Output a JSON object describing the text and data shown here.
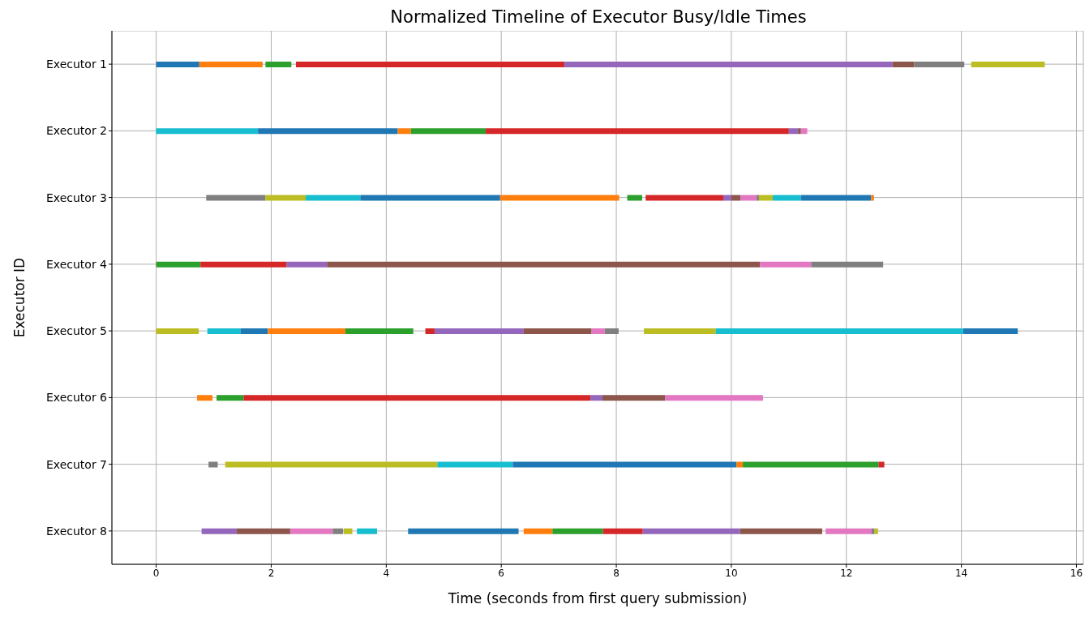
{
  "chart_data": {
    "type": "bar",
    "orientation": "horizontal",
    "title": "Normalized Timeline of Executor Busy/Idle Times",
    "xlabel": "Time (seconds from first query submission)",
    "ylabel": "Executor ID",
    "categories": [
      "Executor 1",
      "Executor 2",
      "Executor 3",
      "Executor 4",
      "Executor 5",
      "Executor 6",
      "Executor 7",
      "Executor 8"
    ],
    "xlim": [
      -0.77,
      16.12
    ],
    "xticks": [
      0,
      2,
      4,
      6,
      8,
      10,
      12,
      14,
      16
    ],
    "grid": true,
    "legend": false,
    "series": [
      {
        "base": [
          0,
          0,
          0.87,
          0,
          0,
          0.71,
          0.91,
          0.79
        ],
        "values": [
          0.75,
          1.77,
          1.03,
          0.77,
          0.74,
          0.27,
          0.16,
          0.61
        ],
        "colors": [
          "#1f77b4",
          "#17becf",
          "#7f7f7f",
          "#2ca02c",
          "#bcbd22",
          "#ff7f0e",
          "#7f7f7f",
          "#9467bd"
        ]
      },
      {
        "base": [
          0.75,
          1.77,
          1.9,
          0.77,
          0.89,
          1.05,
          1.2,
          1.4
        ],
        "values": [
          1.1,
          2.43,
          0.7,
          1.5,
          0.58,
          0.47,
          3.69,
          0.93
        ],
        "colors": [
          "#ff7f0e",
          "#1f77b4",
          "#bcbd22",
          "#d62728",
          "#17becf",
          "#2ca02c",
          "#bcbd22",
          "#8c564b"
        ]
      },
      {
        "base": [
          1.9,
          4.2,
          2.6,
          2.27,
          1.47,
          1.52,
          4.89,
          2.33
        ],
        "values": [
          0.45,
          0.23,
          0.95,
          0.7,
          0.47,
          6.03,
          1.31,
          0.74
        ],
        "colors": [
          "#2ca02c",
          "#ff7f0e",
          "#17becf",
          "#9467bd",
          "#1f77b4",
          "#d62728",
          "#17becf",
          "#e377c2"
        ]
      },
      {
        "base": [
          2.43,
          4.43,
          3.55,
          2.97,
          1.94,
          7.55,
          6.2,
          3.07
        ],
        "values": [
          4.67,
          1.3,
          2.43,
          7.53,
          1.35,
          0.21,
          3.89,
          0.18
        ],
        "colors": [
          "#d62728",
          "#2ca02c",
          "#1f77b4",
          "#8c564b",
          "#ff7f0e",
          "#9467bd",
          "#1f77b4",
          "#7f7f7f"
        ]
      },
      {
        "base": [
          7.1,
          5.73,
          5.98,
          10.5,
          3.29,
          7.76,
          10.09,
          3.26
        ],
        "values": [
          5.7,
          5.27,
          2.07,
          0.89,
          1.18,
          1.09,
          0.11,
          0.15
        ],
        "colors": [
          "#9467bd",
          "#d62728",
          "#ff7f0e",
          "#e377c2",
          "#2ca02c",
          "#8c564b",
          "#ff7f0e",
          "#bcbd22"
        ]
      },
      {
        "base": [
          12.8,
          11.0,
          8.19,
          11.39,
          4.68,
          8.85,
          10.2,
          3.49
        ],
        "values": [
          0.38,
          0.16,
          0.26,
          1.25,
          0.16,
          1.7,
          2.36,
          0.35
        ],
        "colors": [
          "#8c564b",
          "#9467bd",
          "#2ca02c",
          "#7f7f7f",
          "#d62728",
          "#e377c2",
          "#2ca02c",
          "#17becf"
        ]
      },
      {
        "base": [
          13.18,
          11.16,
          8.51,
          null,
          4.84,
          null,
          12.56,
          4.38
        ],
        "values": [
          0.87,
          0.05,
          1.35,
          null,
          1.55,
          null,
          0.1,
          1.92
        ],
        "colors": [
          "#7f7f7f",
          "#8c564b",
          "#d62728",
          null,
          "#9467bd",
          null,
          "#d62728",
          "#1f77b4"
        ]
      },
      {
        "base": [
          14.17,
          11.21,
          9.86,
          null,
          6.39,
          null,
          null,
          6.39
        ],
        "values": [
          1.28,
          0.11,
          0.14,
          null,
          1.18,
          null,
          null,
          0.5
        ],
        "colors": [
          "#bcbd22",
          "#e377c2",
          "#9467bd",
          null,
          "#8c564b",
          null,
          null,
          "#ff7f0e"
        ]
      },
      {
        "base": [
          null,
          null,
          10.0,
          null,
          7.57,
          null,
          null,
          6.89
        ],
        "values": [
          null,
          null,
          0.16,
          null,
          0.23,
          null,
          null,
          0.88
        ],
        "colors": [
          null,
          null,
          "#8c564b",
          null,
          "#e377c2",
          null,
          null,
          "#2ca02c"
        ]
      },
      {
        "base": [
          null,
          null,
          10.16,
          null,
          7.8,
          null,
          null,
          7.77
        ],
        "values": [
          null,
          null,
          0.28,
          null,
          0.24,
          null,
          null,
          0.69
        ],
        "colors": [
          null,
          null,
          "#e377c2",
          null,
          "#7f7f7f",
          null,
          null,
          "#d62728"
        ]
      },
      {
        "base": [
          null,
          null,
          10.44,
          null,
          8.48,
          null,
          null,
          8.46
        ],
        "values": [
          null,
          null,
          0.04,
          null,
          1.25,
          null,
          null,
          1.69
        ],
        "colors": [
          null,
          null,
          "#7f7f7f",
          null,
          "#bcbd22",
          null,
          null,
          "#9467bd"
        ]
      },
      {
        "base": [
          null,
          null,
          10.48,
          null,
          9.73,
          null,
          null,
          10.15
        ],
        "values": [
          null,
          null,
          0.24,
          null,
          4.3,
          null,
          null,
          1.43
        ],
        "colors": [
          null,
          null,
          "#bcbd22",
          null,
          "#17becf",
          null,
          null,
          "#8c564b"
        ]
      },
      {
        "base": [
          null,
          null,
          10.72,
          null,
          14.03,
          null,
          null,
          11.64
        ],
        "values": [
          null,
          null,
          0.49,
          null,
          0.95,
          null,
          null,
          0.8
        ],
        "colors": [
          null,
          null,
          "#17becf",
          null,
          "#1f77b4",
          null,
          null,
          "#e377c2"
        ]
      },
      {
        "base": [
          null,
          null,
          11.21,
          null,
          null,
          null,
          null,
          12.44
        ],
        "values": [
          null,
          null,
          1.22,
          null,
          null,
          null,
          null,
          0.05
        ],
        "colors": [
          null,
          null,
          "#1f77b4",
          null,
          null,
          null,
          null,
          "#7f7f7f"
        ]
      },
      {
        "base": [
          null,
          null,
          12.43,
          null,
          null,
          null,
          null,
          12.49
        ],
        "values": [
          null,
          null,
          0.05,
          null,
          null,
          null,
          null,
          0.06
        ],
        "colors": [
          null,
          null,
          "#ff7f0e",
          null,
          null,
          null,
          null,
          "#bcbd22"
        ]
      }
    ]
  }
}
